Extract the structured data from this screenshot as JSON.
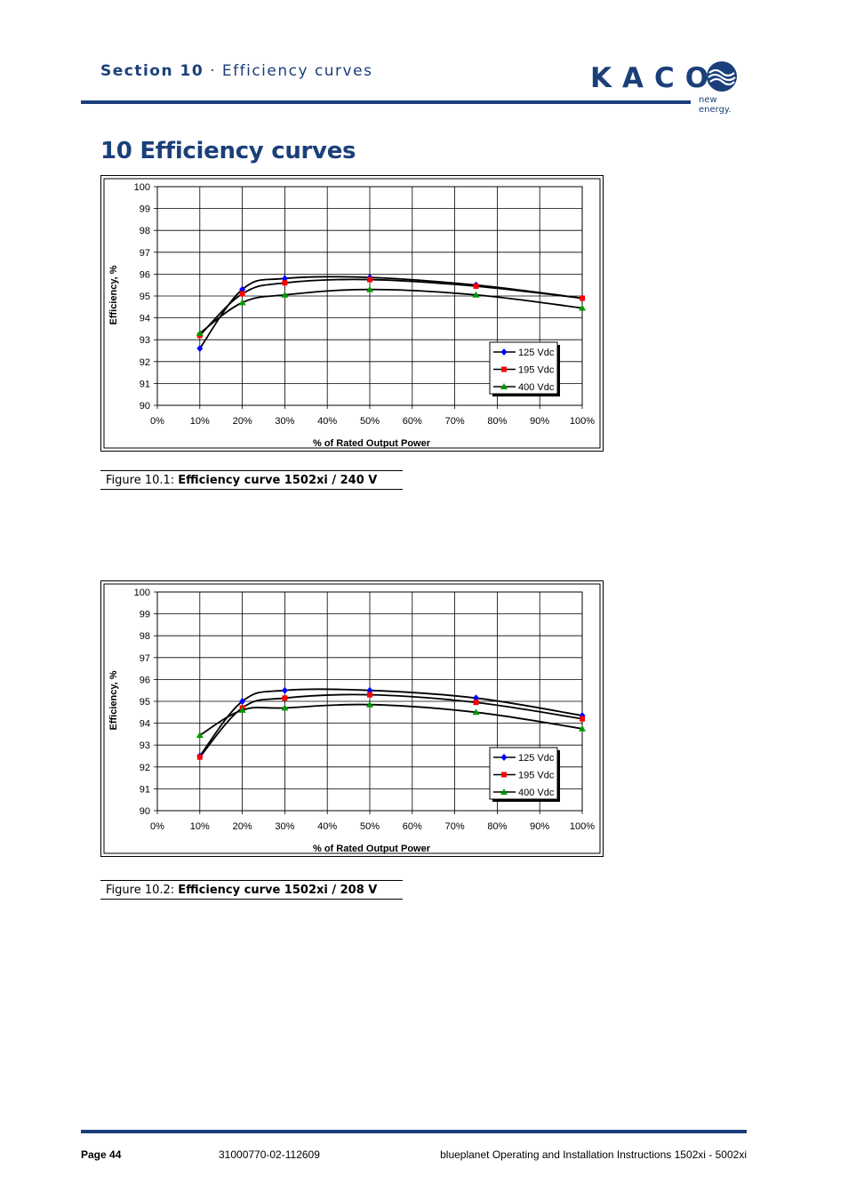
{
  "header": {
    "section_label": "Section 10",
    "section_sep": " · ",
    "section_title": "Efficiency curves",
    "logo_word": "KACO",
    "logo_tagline": "new energy.",
    "brand_color": "#1b3f7a"
  },
  "page_title": "10 Efficiency curves",
  "figures": [
    {
      "caption_prefix": "Figure 10.1: ",
      "caption_text": "Efficiency curve 1502xi / 240 V"
    },
    {
      "caption_prefix": "Figure 10.2: ",
      "caption_text": "Efficiency curve 1502xi / 208 V"
    }
  ],
  "chart_data": [
    {
      "type": "line",
      "xlabel": "% of Rated Output Power",
      "ylabel": "Efficiency, %",
      "xlim": [
        0,
        100
      ],
      "ylim": [
        90,
        100
      ],
      "x_ticks": [
        "0%",
        "10%",
        "20%",
        "30%",
        "40%",
        "50%",
        "60%",
        "70%",
        "80%",
        "90%",
        "100%"
      ],
      "y_ticks": [
        "90",
        "91",
        "92",
        "93",
        "94",
        "95",
        "96",
        "97",
        "98",
        "99",
        "100"
      ],
      "grid": true,
      "legend_position": "bottom-right",
      "series": [
        {
          "name": "125 Vdc",
          "marker": "diamond",
          "color": "#0000ff",
          "x": [
            10,
            20,
            30,
            50,
            75,
            100
          ],
          "y": [
            92.6,
            95.3,
            95.8,
            95.85,
            95.5,
            94.9
          ]
        },
        {
          "name": "195 Vdc",
          "marker": "square",
          "color": "#ff0000",
          "x": [
            10,
            20,
            30,
            50,
            75,
            100
          ],
          "y": [
            93.2,
            95.1,
            95.6,
            95.75,
            95.45,
            94.9
          ]
        },
        {
          "name": "400 Vdc",
          "marker": "triangle",
          "color": "#009900",
          "x": [
            10,
            20,
            30,
            50,
            75,
            100
          ],
          "y": [
            93.3,
            94.7,
            95.05,
            95.3,
            95.05,
            94.45
          ]
        }
      ]
    },
    {
      "type": "line",
      "xlabel": "% of Rated Output Power",
      "ylabel": "Efficiency, %",
      "xlim": [
        0,
        100
      ],
      "ylim": [
        90,
        100
      ],
      "x_ticks": [
        "0%",
        "10%",
        "20%",
        "30%",
        "40%",
        "50%",
        "60%",
        "70%",
        "80%",
        "90%",
        "100%"
      ],
      "y_ticks": [
        "90",
        "91",
        "92",
        "93",
        "94",
        "95",
        "96",
        "97",
        "98",
        "99",
        "100"
      ],
      "grid": true,
      "legend_position": "bottom-right",
      "series": [
        {
          "name": "125 Vdc",
          "marker": "diamond",
          "color": "#0000ff",
          "x": [
            10,
            20,
            30,
            50,
            75,
            100
          ],
          "y": [
            92.5,
            95.0,
            95.5,
            95.5,
            95.15,
            94.35
          ]
        },
        {
          "name": "195 Vdc",
          "marker": "square",
          "color": "#ff0000",
          "x": [
            10,
            20,
            30,
            50,
            75,
            100
          ],
          "y": [
            92.45,
            94.7,
            95.15,
            95.3,
            94.95,
            94.2
          ]
        },
        {
          "name": "400 Vdc",
          "marker": "triangle",
          "color": "#009900",
          "x": [
            10,
            20,
            30,
            50,
            75,
            100
          ],
          "y": [
            93.45,
            94.6,
            94.7,
            94.85,
            94.5,
            93.75
          ]
        }
      ]
    }
  ],
  "footer": {
    "page": "Page 44",
    "doc_number": "31000770-02-112609",
    "doc_title": "blueplanet Operating and Installation Instructions 1502xi - 5002xi"
  }
}
